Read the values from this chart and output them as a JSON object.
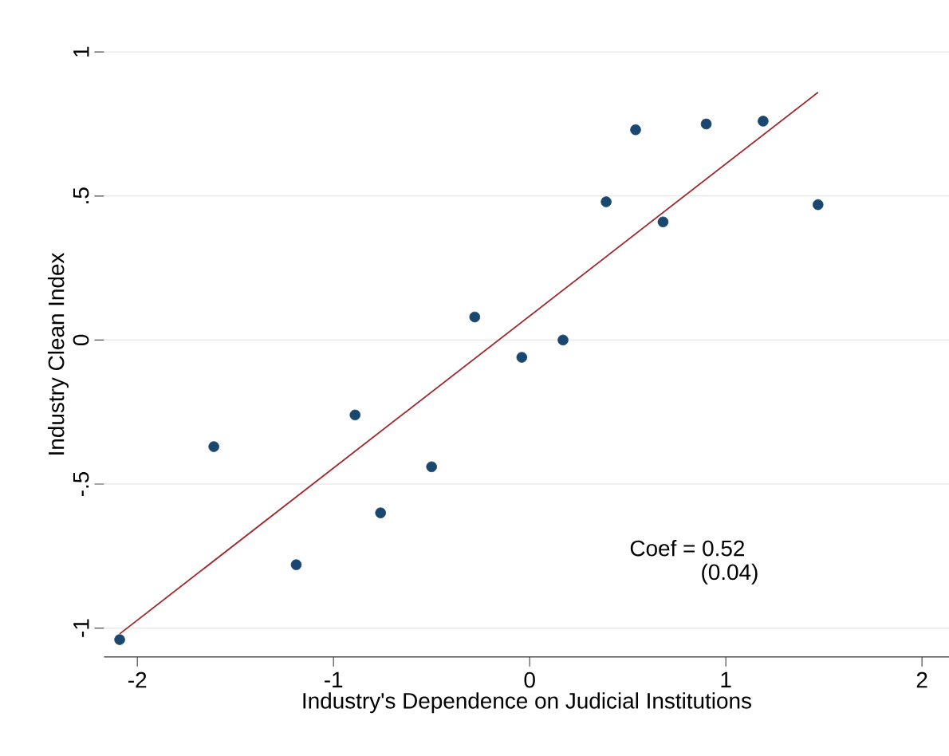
{
  "chart_data": {
    "type": "scatter",
    "xlabel": "Industry's Dependence on Judicial Institutions",
    "ylabel": "Industry Clean Index",
    "annotations": [
      "Coef = 0.52",
      "(0.04)"
    ],
    "series": [
      {
        "color": "#1a476f",
        "marker": "circle",
        "x": [
          -2.09,
          -1.61,
          -1.19,
          -0.89,
          -0.76,
          -0.5,
          -0.28,
          -0.04,
          0.17,
          0.39,
          0.54,
          0.68,
          0.9,
          1.19,
          1.47
        ],
        "values": [
          -1.04,
          -0.37,
          -0.78,
          -0.26,
          -0.6,
          -0.44,
          0.08,
          -0.06,
          0.0,
          0.48,
          0.73,
          0.41,
          0.75,
          0.76,
          0.47
        ]
      },
      {
        "type": "line",
        "color": "#a0282e",
        "x": [
          -2.09,
          1.47
        ],
        "values": [
          -1.02,
          0.86
        ]
      }
    ],
    "xlim": [
      -2.17,
      2.14
    ],
    "ylim": [
      -1.1,
      1
    ],
    "xticks": [
      -2,
      -1,
      0,
      1,
      2
    ],
    "yticks": [
      -1,
      {
        "value": -0.5,
        "label": "-.5"
      },
      0,
      {
        "value": 0.5,
        "label": ".5"
      },
      1
    ],
    "grid": "y"
  }
}
